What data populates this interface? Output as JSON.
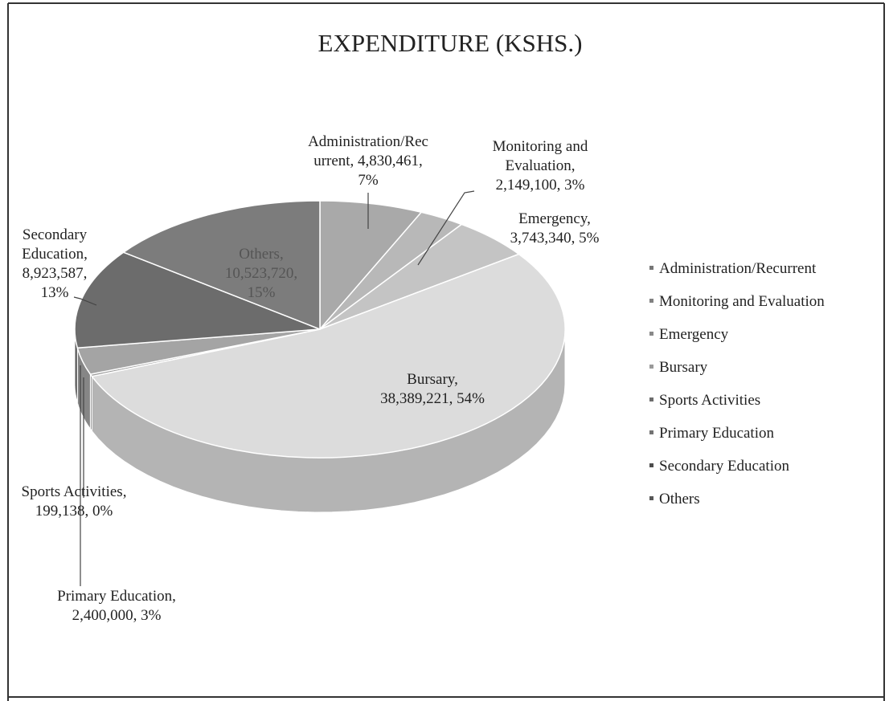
{
  "chart_data": {
    "type": "pie3d",
    "title": "EXPENDITURE (KSHS.)",
    "categories": [
      "Administration/Recurrent",
      "Monitoring and Evaluation",
      "Emergency",
      "Bursary",
      "Sports Activities",
      "Primary Education",
      "Secondary Education",
      "Others"
    ],
    "values": [
      4830461,
      2149100,
      3743340,
      38389221,
      199138,
      2400000,
      8923587,
      10523720
    ],
    "value_labels": [
      "Administration/Rec\nurrent, 4,830,461,\n7%",
      "Monitoring and\nEvaluation,\n2,149,100, 3%",
      "Emergency,\n3,743,340, 5%",
      "Bursary,\n38,389,221, 54%",
      "Sports Activities,\n199,138, 0%",
      "Primary Education,\n2,400,000, 3%",
      "Secondary\nEducation,\n8,923,587,\n13%",
      "Others,\n10,523,720,\n15%"
    ],
    "colors": [
      "#a9a9a9",
      "#b8b8b8",
      "#c4c4c4",
      "#dcdcdc",
      "#9c9c9c",
      "#a4a4a4",
      "#6c6c6c",
      "#7c7c7c"
    ],
    "legend": "right"
  }
}
